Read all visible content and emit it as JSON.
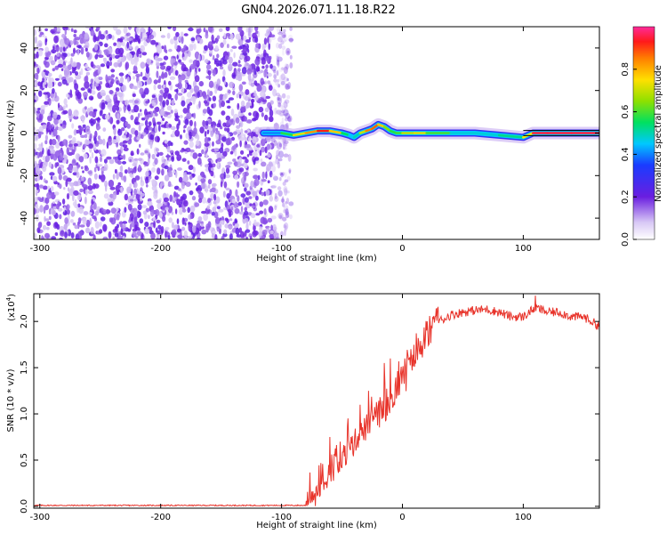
{
  "title": "GN04.2026.071.11.18.R22",
  "chart_data": [
    {
      "type": "heatmap",
      "name": "spectrogram",
      "xlabel": "Height of straight line (km)",
      "ylabel": "Frequency (Hz)",
      "xlim": [
        -305,
        163
      ],
      "ylim": [
        -50,
        50
      ],
      "xticks": [
        -300,
        -200,
        -100,
        0,
        100
      ],
      "yticks": [
        -40,
        -20,
        0,
        20,
        40
      ],
      "noise_region_x": [
        -305,
        -92
      ],
      "signal_track": {
        "x": [
          -115,
          -100,
          -90,
          -80,
          -70,
          -60,
          -50,
          -44,
          -40,
          -35,
          -30,
          -25,
          -20,
          -15,
          -10,
          -5,
          0,
          10,
          20,
          40,
          60,
          80,
          100,
          108,
          120,
          140,
          163
        ],
        "freq": [
          0,
          0,
          -1,
          0,
          1,
          1,
          0,
          -1,
          -2,
          0,
          1,
          2,
          4,
          3,
          1,
          0,
          0,
          0,
          0,
          0,
          0,
          -1,
          -2,
          0,
          0,
          0,
          0
        ],
        "amp": [
          0.35,
          0.45,
          0.7,
          0.75,
          0.9,
          0.95,
          0.6,
          0.5,
          0.4,
          0.6,
          0.8,
          0.9,
          0.85,
          0.7,
          0.6,
          0.55,
          0.65,
          0.75,
          0.7,
          0.5,
          0.45,
          0.5,
          0.55,
          0.95,
          0.95,
          0.95,
          0.95
        ]
      },
      "colorbar": {
        "label": "Normalized spectral amplitude",
        "range": [
          0,
          1
        ],
        "ticks": [
          "0.0",
          "0.2",
          "0.4",
          "0.6",
          "0.8"
        ]
      }
    },
    {
      "type": "line",
      "name": "snr",
      "xlabel": "Height of straight line (km)",
      "ylabel": "SNR (10 * v/v)",
      "scale_label": "(x10",
      "scale_exponent": "4",
      "xlim": [
        -305,
        163
      ],
      "ylim": [
        -0.02,
        2.3
      ],
      "xticks": [
        -300,
        -200,
        -100,
        0,
        100
      ],
      "yticks": [
        "0.0",
        "0.5",
        "1.0",
        "1.5",
        "2.0"
      ],
      "color": "#e8332a",
      "envelope_x": [
        -305,
        -80,
        -75,
        -60,
        -50,
        -40,
        -30,
        -20,
        -10,
        0,
        10,
        20,
        30,
        40,
        50,
        60,
        70,
        80,
        90,
        100,
        110,
        120,
        130,
        140,
        150,
        163
      ],
      "envelope_y": [
        0.01,
        0.01,
        0.1,
        0.3,
        0.5,
        0.7,
        0.85,
        1.0,
        1.15,
        1.4,
        1.6,
        1.85,
        2.0,
        2.07,
        2.1,
        2.12,
        2.13,
        2.1,
        2.05,
        2.05,
        2.15,
        2.1,
        2.1,
        2.05,
        2.05,
        1.95
      ],
      "spikes": [
        {
          "x": -60,
          "y": 0.75
        },
        {
          "x": -45,
          "y": 0.95
        },
        {
          "x": -35,
          "y": 1.1
        },
        {
          "x": -28,
          "y": 1.25
        },
        {
          "x": -15,
          "y": 1.55
        },
        {
          "x": -10,
          "y": 1.6
        },
        {
          "x": 2,
          "y": 1.6
        },
        {
          "x": 110,
          "y": 2.28
        }
      ]
    }
  ]
}
